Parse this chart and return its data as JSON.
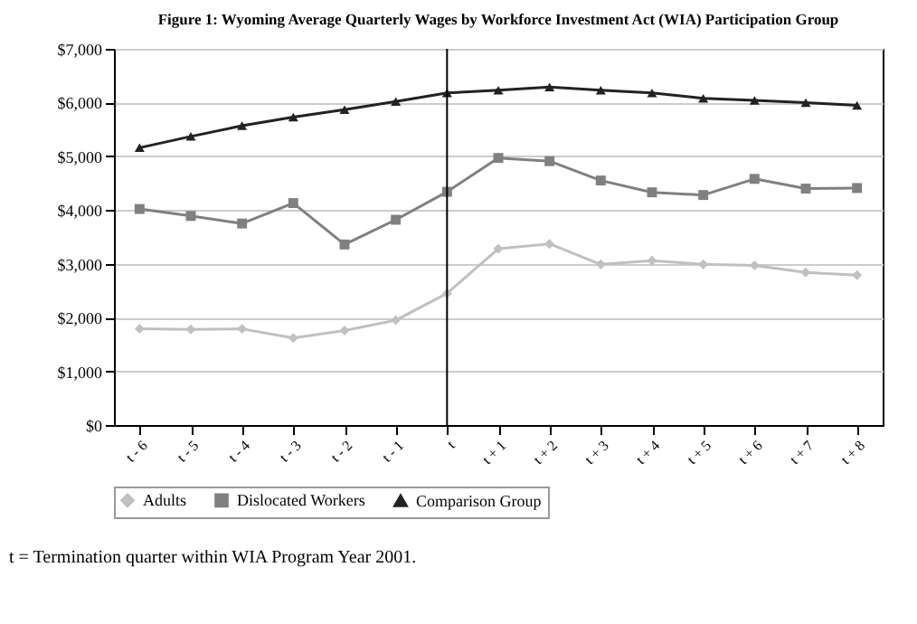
{
  "chart_data": {
    "type": "line",
    "title": "Figure 1: Wyoming Average Quarterly Wages by Workforce Investment Act (WIA) Participation Group",
    "categories": [
      "t - 6",
      "t - 5",
      "t - 4",
      "t - 3",
      "t - 2",
      "t - 1",
      "t",
      "t + 1",
      "t + 2",
      "t + 3",
      "t + 4",
      "t + 5",
      "t + 6",
      "t + 7",
      "t + 8"
    ],
    "series": [
      {
        "name": "Adults",
        "color": "#c0c0c0",
        "marker": "diamond",
        "values": [
          1790,
          1780,
          1790,
          1620,
          1760,
          1950,
          2450,
          3280,
          3370,
          2990,
          3060,
          2990,
          2970,
          2840,
          2790
        ]
      },
      {
        "name": "Dislocated Workers",
        "color": "#808080",
        "marker": "square",
        "values": [
          4020,
          3890,
          3750,
          4130,
          3360,
          3820,
          4340,
          4970,
          4910,
          4550,
          4330,
          4280,
          4580,
          4400,
          4410
        ]
      },
      {
        "name": "Comparison Group",
        "color": "#222222",
        "marker": "triangle",
        "values": [
          5160,
          5370,
          5570,
          5730,
          5870,
          6020,
          6180,
          6230,
          6290,
          6230,
          6180,
          6080,
          6040,
          6000,
          5950
        ]
      }
    ],
    "ylim": [
      0,
      7000
    ],
    "yticks": [
      {
        "value": 0,
        "label": "$0"
      },
      {
        "value": 1000,
        "label": "$1,000"
      },
      {
        "value": 2000,
        "label": "$2,000"
      },
      {
        "value": 3000,
        "label": "$3,000"
      },
      {
        "value": 4000,
        "label": "$4,000"
      },
      {
        "value": 5000,
        "label": "$5,000"
      },
      {
        "value": 6000,
        "label": "$6,000"
      },
      {
        "value": 7000,
        "label": "$7,000"
      }
    ],
    "grid": "y",
    "legend": "bottom",
    "ref_lines": [
      {
        "axis": "x",
        "value": "t",
        "color": "#000000"
      }
    ],
    "annotations": [
      "t = Termination quarter within WIA Program Year 2001."
    ]
  }
}
